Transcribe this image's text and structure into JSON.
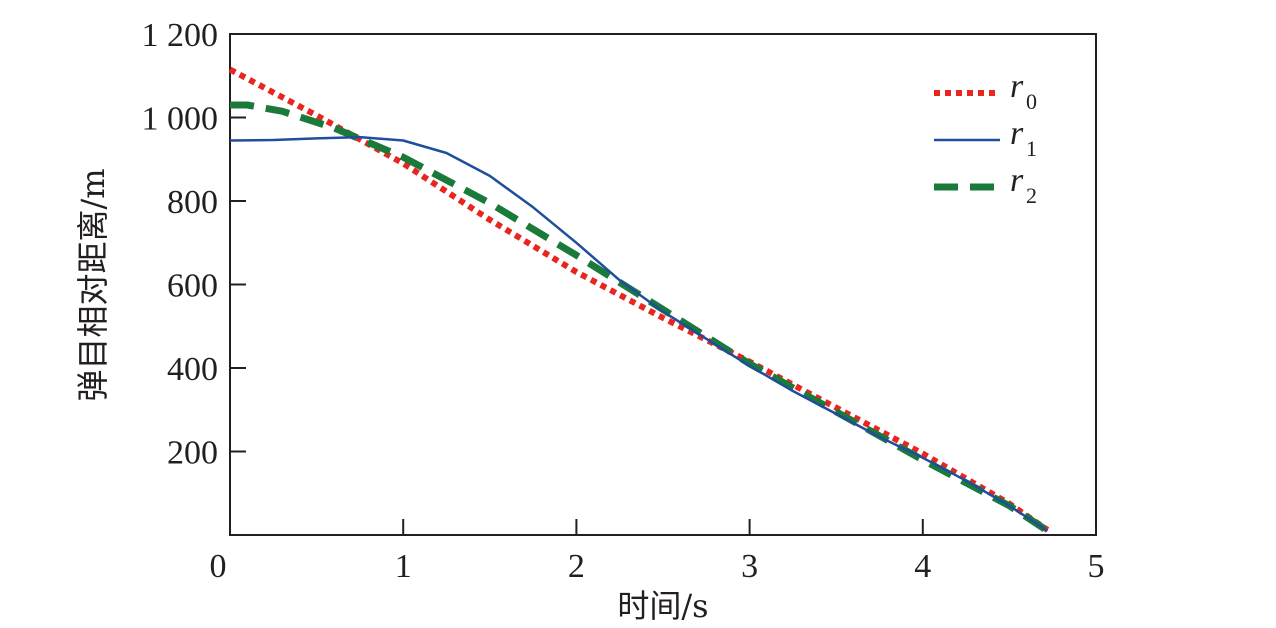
{
  "chart_data": {
    "type": "line",
    "xlabel": "时间/s",
    "ylabel": "弹目相对距离/m",
    "xlim": [
      0,
      5
    ],
    "ylim": [
      0,
      1200
    ],
    "xticks": [
      0,
      1,
      2,
      3,
      4,
      5
    ],
    "xtick_labels": [
      "0",
      "1",
      "2",
      "3",
      "4",
      "5"
    ],
    "yticks": [
      200,
      400,
      600,
      800,
      1000,
      1200
    ],
    "ytick_labels": [
      "200",
      "400",
      "600",
      "800",
      "1 000",
      "1 200"
    ],
    "grid": false,
    "legend_position": "top-right",
    "series": [
      {
        "name": "r",
        "subscript": "0",
        "color": "#e8261f",
        "style": "dotted",
        "x": [
          0,
          0.5,
          1,
          1.5,
          2,
          2.5,
          3,
          3.5,
          4,
          4.5,
          4.72
        ],
        "y": [
          1115,
          1005,
          890,
          755,
          630,
          520,
          415,
          305,
          195,
          75,
          12
        ]
      },
      {
        "name": "r",
        "subscript": "1",
        "color": "#1f4e9c",
        "style": "solid",
        "x": [
          0,
          0.25,
          0.5,
          0.75,
          1,
          1.25,
          1.5,
          1.75,
          2,
          2.25,
          2.5,
          2.75,
          3,
          3.25,
          3.5,
          3.75,
          4,
          4.25,
          4.5,
          4.72
        ],
        "y": [
          945,
          946,
          950,
          953,
          945,
          915,
          860,
          785,
          700,
          610,
          535,
          470,
          405,
          345,
          290,
          235,
          185,
          130,
          70,
          10
        ]
      },
      {
        "name": "r",
        "subscript": "2",
        "color": "#1a7a3a",
        "style": "dashed",
        "x": [
          0,
          0.1,
          0.3,
          0.6,
          1,
          1.5,
          2,
          2.5,
          3,
          3.5,
          4,
          4.5,
          4.72
        ],
        "y": [
          1030,
          1030,
          1015,
          975,
          905,
          795,
          670,
          540,
          410,
          295,
          180,
          70,
          10
        ]
      }
    ]
  }
}
